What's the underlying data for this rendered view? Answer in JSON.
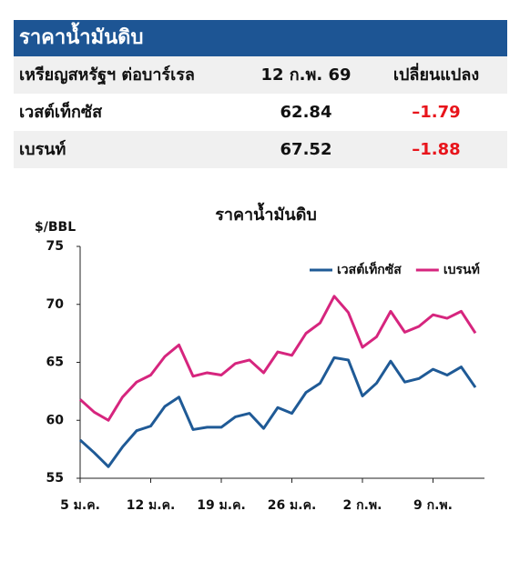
{
  "table": {
    "title": "ราคาน้ำมันดิบ",
    "header": [
      "เหรียญสหรัฐฯ ต่อบาร์เรล",
      "12 ก.พ. 69",
      "เปลี่ยนแปลง"
    ],
    "rows": [
      [
        "เวสต์เท็กซัส",
        "62.84",
        "–1.79"
      ],
      [
        "เบรนท์",
        "67.52",
        "–1.88"
      ]
    ]
  },
  "chart_data": {
    "type": "line",
    "title": "ราคาน้ำมันดิบ",
    "y_label": "$/BBL",
    "categories": [
      "5 ม.ค.",
      null,
      null,
      null,
      null,
      "12 ม.ค.",
      null,
      null,
      null,
      null,
      "19 ม.ค.",
      null,
      null,
      null,
      null,
      "26 ม.ค.",
      null,
      null,
      null,
      null,
      "2 ก.พ.",
      null,
      null,
      null,
      null,
      "9 ก.พ.",
      null,
      null,
      null
    ],
    "series": [
      {
        "name": "เวสต์เท็กซัส",
        "color": "#1f5a96",
        "values": [
          58.3,
          57.2,
          56.0,
          57.7,
          59.1,
          59.5,
          61.2,
          62.0,
          59.2,
          59.4,
          59.4,
          60.3,
          60.6,
          59.3,
          61.1,
          60.6,
          62.4,
          63.2,
          65.4,
          65.2,
          62.1,
          63.2,
          65.1,
          63.3,
          63.6,
          64.4,
          63.9,
          64.6,
          62.84
        ]
      },
      {
        "name": "เบรนท์",
        "color": "#d6257e",
        "values": [
          61.8,
          60.7,
          60.0,
          62.0,
          63.3,
          63.9,
          65.5,
          66.5,
          63.8,
          64.1,
          63.9,
          64.9,
          65.2,
          64.1,
          65.9,
          65.6,
          67.5,
          68.4,
          70.7,
          69.3,
          66.3,
          67.2,
          69.4,
          67.6,
          68.1,
          69.1,
          68.8,
          69.4,
          67.52
        ]
      }
    ],
    "ylim": [
      55,
      75
    ],
    "yticks": [
      55,
      60,
      65,
      70,
      75
    ],
    "grid": false,
    "legend": "top-right"
  }
}
